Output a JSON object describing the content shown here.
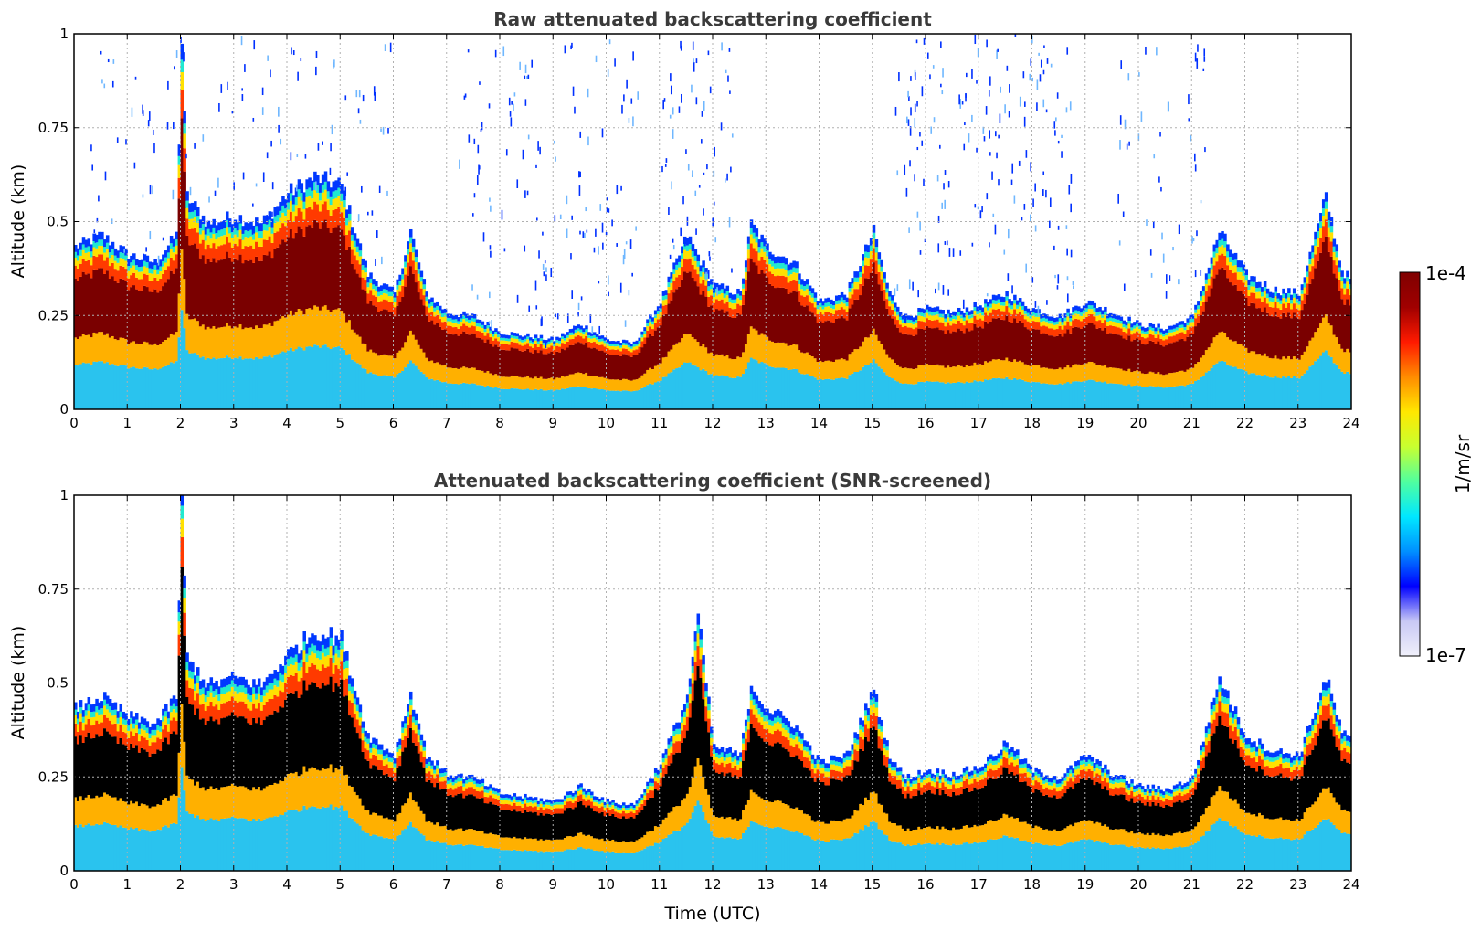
{
  "chart_data": [
    {
      "type": "heatmap",
      "title": "Raw attenuated backscattering coefficient",
      "xlabel": "",
      "ylabel": "Altitude (km)",
      "xlim": [
        0,
        24
      ],
      "ylim": [
        0,
        1
      ],
      "x_ticks": [
        "0",
        "1",
        "2",
        "3",
        "4",
        "5",
        "6",
        "7",
        "8",
        "9",
        "10",
        "11",
        "12",
        "13",
        "14",
        "15",
        "16",
        "17",
        "18",
        "19",
        "20",
        "21",
        "22",
        "23",
        "24"
      ],
      "y_ticks": [
        "0",
        "0.25",
        "0.5",
        "0.75",
        "1"
      ],
      "grid": true,
      "colorscale": "jet",
      "noise_above_layer": true,
      "layer_top_km": [
        [
          0,
          0.42
        ],
        [
          0.5,
          0.45
        ],
        [
          1,
          0.4
        ],
        [
          1.5,
          0.38
        ],
        [
          1.9,
          0.45
        ],
        [
          2,
          0.95
        ],
        [
          2.1,
          0.55
        ],
        [
          2.5,
          0.48
        ],
        [
          3,
          0.5
        ],
        [
          3.5,
          0.48
        ],
        [
          4,
          0.56
        ],
        [
          4.5,
          0.6
        ],
        [
          5,
          0.58
        ],
        [
          5.5,
          0.35
        ],
        [
          6,
          0.3
        ],
        [
          6.3,
          0.46
        ],
        [
          6.6,
          0.3
        ],
        [
          7,
          0.25
        ],
        [
          7.5,
          0.24
        ],
        [
          8,
          0.2
        ],
        [
          9,
          0.18
        ],
        [
          9.5,
          0.22
        ],
        [
          10,
          0.18
        ],
        [
          10.5,
          0.17
        ],
        [
          11,
          0.28
        ],
        [
          11.5,
          0.45
        ],
        [
          12,
          0.32
        ],
        [
          12.5,
          0.3
        ],
        [
          12.7,
          0.48
        ],
        [
          13,
          0.42
        ],
        [
          13.5,
          0.38
        ],
        [
          14,
          0.28
        ],
        [
          14.5,
          0.3
        ],
        [
          15,
          0.46
        ],
        [
          15.3,
          0.3
        ],
        [
          15.6,
          0.24
        ],
        [
          16,
          0.26
        ],
        [
          16.5,
          0.25
        ],
        [
          17,
          0.27
        ],
        [
          17.5,
          0.3
        ],
        [
          18,
          0.26
        ],
        [
          18.5,
          0.24
        ],
        [
          19,
          0.28
        ],
        [
          19.5,
          0.25
        ],
        [
          20,
          0.22
        ],
        [
          20.5,
          0.21
        ],
        [
          21,
          0.24
        ],
        [
          21.5,
          0.46
        ],
        [
          22,
          0.35
        ],
        [
          22.5,
          0.31
        ],
        [
          23,
          0.3
        ],
        [
          23.5,
          0.55
        ],
        [
          23.8,
          0.36
        ],
        [
          24,
          0.33
        ]
      ]
    },
    {
      "type": "heatmap",
      "title": "Attenuated backscattering coefficient (SNR-screened)",
      "xlabel": "Time (UTC)",
      "ylabel": "Altitude (km)",
      "xlim": [
        0,
        24
      ],
      "ylim": [
        0,
        1
      ],
      "x_ticks": [
        "0",
        "1",
        "2",
        "3",
        "4",
        "5",
        "6",
        "7",
        "8",
        "9",
        "10",
        "11",
        "12",
        "13",
        "14",
        "15",
        "16",
        "17",
        "18",
        "19",
        "20",
        "21",
        "22",
        "23",
        "24"
      ],
      "y_ticks": [
        "0",
        "0.25",
        "0.5",
        "0.75",
        "1"
      ],
      "grid": true,
      "colorscale": "jet",
      "noise_above_layer": false,
      "saturated_color": "#000000",
      "layer_top_km": [
        [
          0,
          0.42
        ],
        [
          0.5,
          0.45
        ],
        [
          1,
          0.4
        ],
        [
          1.5,
          0.38
        ],
        [
          1.9,
          0.45
        ],
        [
          2,
          0.96
        ],
        [
          2.1,
          0.55
        ],
        [
          2.5,
          0.48
        ],
        [
          3,
          0.5
        ],
        [
          3.5,
          0.48
        ],
        [
          4,
          0.56
        ],
        [
          4.5,
          0.62
        ],
        [
          5,
          0.6
        ],
        [
          5.5,
          0.35
        ],
        [
          6,
          0.3
        ],
        [
          6.3,
          0.46
        ],
        [
          6.6,
          0.3
        ],
        [
          7,
          0.25
        ],
        [
          7.5,
          0.24
        ],
        [
          8,
          0.2
        ],
        [
          9,
          0.18
        ],
        [
          9.5,
          0.22
        ],
        [
          10,
          0.18
        ],
        [
          10.5,
          0.17
        ],
        [
          11,
          0.28
        ],
        [
          11.5,
          0.45
        ],
        [
          11.7,
          0.66
        ],
        [
          12,
          0.32
        ],
        [
          12.5,
          0.3
        ],
        [
          12.7,
          0.48
        ],
        [
          13,
          0.42
        ],
        [
          13.5,
          0.38
        ],
        [
          14,
          0.28
        ],
        [
          14.5,
          0.3
        ],
        [
          15,
          0.47
        ],
        [
          15.3,
          0.3
        ],
        [
          15.6,
          0.24
        ],
        [
          16,
          0.26
        ],
        [
          16.5,
          0.25
        ],
        [
          17,
          0.27
        ],
        [
          17.5,
          0.33
        ],
        [
          18,
          0.26
        ],
        [
          18.5,
          0.24
        ],
        [
          19,
          0.3
        ],
        [
          19.5,
          0.25
        ],
        [
          20,
          0.22
        ],
        [
          20.5,
          0.21
        ],
        [
          21,
          0.24
        ],
        [
          21.5,
          0.5
        ],
        [
          22,
          0.35
        ],
        [
          22.5,
          0.31
        ],
        [
          23,
          0.3
        ],
        [
          23.5,
          0.5
        ],
        [
          23.8,
          0.36
        ],
        [
          24,
          0.33
        ]
      ]
    }
  ],
  "colorbar": {
    "max_label": "1e-4",
    "min_label": "1e-7",
    "unit_label": "1/m/sr",
    "stops": [
      "#f0f0fa",
      "#c8c8f5",
      "#0000ff",
      "#0090ff",
      "#00e8ff",
      "#50ff9f",
      "#c8ff30",
      "#ffe800",
      "#ff8c00",
      "#ff1a00",
      "#a00000",
      "#800000"
    ]
  }
}
